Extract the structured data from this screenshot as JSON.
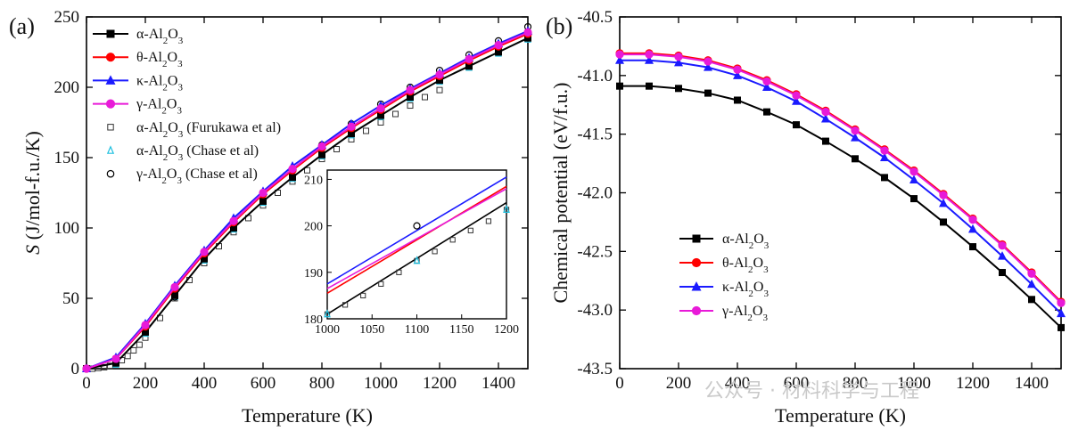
{
  "watermark": "公众号 · 材料科学与工程",
  "chart_data": [
    {
      "panel": "(a)",
      "type": "line",
      "xlabel": "Temperature (K)",
      "ylabel_italic": "S",
      "ylabel_rest": " (J/mol-f.u./K)",
      "xlim": [
        0,
        1500
      ],
      "ylim": [
        0,
        250
      ],
      "xticks": [
        0,
        200,
        400,
        600,
        800,
        1000,
        1200,
        1400
      ],
      "yticks": [
        0,
        50,
        100,
        150,
        200,
        250
      ],
      "x": [
        0,
        100,
        200,
        300,
        400,
        500,
        600,
        700,
        800,
        900,
        1000,
        1100,
        1200,
        1300,
        1400,
        1500
      ],
      "series": [
        {
          "name": "α-Al2O3",
          "label": [
            "α-Al",
            "2",
            "O",
            "3",
            ""
          ],
          "color": "#000000",
          "marker": "square",
          "values": [
            0,
            4,
            26,
            52,
            78,
            100,
            119,
            136,
            152,
            167,
            180,
            193,
            205,
            215,
            225,
            235
          ]
        },
        {
          "name": "θ-Al2O3",
          "label": [
            "θ-Al",
            "2",
            "O",
            "3",
            ""
          ],
          "color": "#ff0000",
          "marker": "circle",
          "values": [
            0,
            7,
            30,
            57,
            82,
            104,
            124,
            141,
            157,
            171,
            184,
            197,
            208,
            219,
            229,
            238
          ]
        },
        {
          "name": "κ-Al2O3",
          "label": [
            "κ-Al",
            "2",
            "O",
            "3",
            ""
          ],
          "color": "#1a1aff",
          "marker": "triangle",
          "values": [
            0,
            8,
            32,
            59,
            84,
            107,
            126,
            144,
            159,
            174,
            187,
            199,
            210,
            221,
            231,
            240
          ]
        },
        {
          "name": "γ-Al2O3",
          "label": [
            "γ-Al",
            "2",
            "O",
            "3",
            ""
          ],
          "color": "#e81ad8",
          "marker": "circle",
          "values": [
            0,
            7,
            31,
            58,
            83,
            105,
            125,
            142,
            158,
            172,
            185,
            198,
            209,
            220,
            230,
            239
          ]
        }
      ],
      "reference_series": [
        {
          "name": "α-Al2O3 (Furukawa et al)",
          "label": [
            "α-Al",
            "2",
            "O",
            "3",
            "  (Furukawa et al)"
          ],
          "color": "#333333",
          "marker": "open-square",
          "x": [
            20,
            40,
            60,
            80,
            100,
            120,
            140,
            160,
            180,
            200,
            250,
            300,
            350,
            400,
            450,
            500,
            550,
            600,
            650,
            700,
            750,
            800,
            850,
            900,
            950,
            1000,
            1050,
            1100,
            1150,
            1200
          ],
          "values": [
            0,
            0.5,
            1,
            2,
            3.5,
            6,
            9,
            13,
            17,
            22,
            36,
            50,
            63,
            75,
            87,
            97,
            107,
            116,
            125,
            133,
            141,
            149,
            156,
            163,
            169,
            175,
            181,
            187,
            193,
            198
          ]
        },
        {
          "name": "α-Al2O3 (Chase et al)",
          "label": [
            "α-Al",
            "2",
            "O",
            "3",
            " (Chase et al)"
          ],
          "color": "#20c0e0",
          "marker": "open-triangle",
          "x": [
            100,
            200,
            300,
            400,
            500,
            600,
            700,
            800,
            900,
            1000,
            1100,
            1200,
            1300,
            1400,
            1500
          ],
          "values": [
            3,
            25,
            51,
            77,
            99,
            118,
            135,
            151,
            166,
            179,
            192,
            204,
            214,
            224,
            234
          ]
        },
        {
          "name": "γ-Al2O3 (Chase et al)",
          "label": [
            "γ-Al",
            "2",
            "O",
            "3",
            " (Chase et al)"
          ],
          "color": "#000000",
          "marker": "open-circle",
          "x": [
            300,
            400,
            500,
            600,
            700,
            800,
            900,
            1000,
            1100,
            1200,
            1300,
            1400,
            1500
          ],
          "values": [
            51,
            79,
            103,
            124,
            142,
            159,
            174,
            188,
            200,
            212,
            223,
            233,
            243
          ]
        }
      ],
      "inset": {
        "xlim": [
          1000,
          1200
        ],
        "ylim": [
          180,
          212
        ],
        "xticks": [
          1000,
          1050,
          1100,
          1150,
          1200
        ],
        "yticks": [
          180,
          190,
          200,
          210
        ],
        "lines": [
          {
            "color": "#000000",
            "values": [
              181,
              205
            ]
          },
          {
            "color": "#ff0000",
            "values": [
              185.5,
              208.5
            ]
          },
          {
            "color": "#1a1aff",
            "values": [
              187.5,
              210.5
            ]
          },
          {
            "color": "#e81ad8",
            "values": [
              186.5,
              208
            ]
          }
        ],
        "furukawa_x": [
          1000,
          1020,
          1040,
          1060,
          1080,
          1100,
          1120,
          1140,
          1160,
          1180,
          1200
        ],
        "furukawa_values": [
          181,
          183,
          185,
          187.5,
          190,
          192.5,
          194.5,
          197,
          199,
          201,
          203.5
        ],
        "chase_alpha": [
          {
            "x": 1000,
            "y": 181
          },
          {
            "x": 1100,
            "y": 192.5
          },
          {
            "x": 1200,
            "y": 203.5
          }
        ],
        "chase_gamma": [
          {
            "x": 1100,
            "y": 200
          }
        ]
      }
    },
    {
      "panel": "(b)",
      "type": "line",
      "xlabel": "Temperature (K)",
      "ylabel": "Chemical potential (eV/f.u.)",
      "xlim": [
        0,
        1500
      ],
      "ylim": [
        -43.5,
        -40.5
      ],
      "xticks": [
        0,
        200,
        400,
        600,
        800,
        1000,
        1200,
        1400
      ],
      "yticks": [
        -43.5,
        -43.0,
        -42.5,
        -42.0,
        -41.5,
        -41.0,
        -40.5
      ],
      "ytick_labels": [
        "-43.5",
        "-43.0",
        "-42.5",
        "-42.0",
        "-41.5",
        "-41.0",
        "-40.5"
      ],
      "x": [
        0,
        100,
        200,
        300,
        400,
        500,
        600,
        700,
        800,
        900,
        1000,
        1100,
        1200,
        1300,
        1400,
        1500
      ],
      "series": [
        {
          "name": "α-Al2O3",
          "label": [
            "α-Al",
            "2",
            "O",
            "3",
            ""
          ],
          "color": "#000000",
          "marker": "square",
          "values": [
            -41.09,
            -41.09,
            -41.11,
            -41.15,
            -41.21,
            -41.31,
            -41.42,
            -41.56,
            -41.71,
            -41.87,
            -42.05,
            -42.25,
            -42.46,
            -42.68,
            -42.91,
            -43.15
          ]
        },
        {
          "name": "θ-Al2O3",
          "label": [
            "θ-Al",
            "2",
            "O",
            "3",
            ""
          ],
          "color": "#ff0000",
          "marker": "circle",
          "values": [
            -40.81,
            -40.81,
            -40.83,
            -40.87,
            -40.94,
            -41.04,
            -41.16,
            -41.3,
            -41.46,
            -41.63,
            -41.81,
            -42.01,
            -42.22,
            -42.44,
            -42.68,
            -42.93
          ]
        },
        {
          "name": "κ-Al2O3",
          "label": [
            "κ-Al",
            "2",
            "O",
            "3",
            ""
          ],
          "color": "#1a1aff",
          "marker": "triangle",
          "values": [
            -40.87,
            -40.87,
            -40.89,
            -40.93,
            -41.0,
            -41.1,
            -41.22,
            -41.37,
            -41.53,
            -41.7,
            -41.89,
            -42.09,
            -42.31,
            -42.54,
            -42.78,
            -43.03
          ]
        },
        {
          "name": "γ-Al2O3",
          "label": [
            "γ-Al",
            "2",
            "O",
            "3",
            ""
          ],
          "color": "#e81ad8",
          "marker": "circle",
          "values": [
            -40.82,
            -40.82,
            -40.84,
            -40.88,
            -40.95,
            -41.05,
            -41.17,
            -41.31,
            -41.47,
            -41.64,
            -41.82,
            -42.02,
            -42.23,
            -42.45,
            -42.69,
            -42.94
          ]
        }
      ]
    }
  ]
}
